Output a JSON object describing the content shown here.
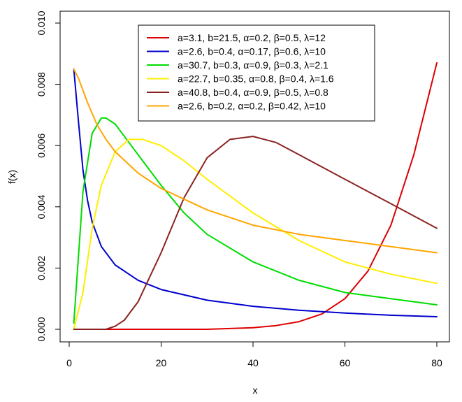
{
  "chart_data": {
    "type": "line",
    "xlabel": "x",
    "ylabel": "f(x)",
    "xlim": [
      0,
      80
    ],
    "ylim": [
      0,
      0.01
    ],
    "x_ticks": [
      "0",
      "20",
      "40",
      "60",
      "80"
    ],
    "y_ticks": [
      "0.000",
      "0.002",
      "0.004",
      "0.006",
      "0.008",
      "0.010"
    ],
    "x_tick_values": [
      0,
      20,
      40,
      60,
      80
    ],
    "y_tick_values": [
      0,
      0.002,
      0.004,
      0.006,
      0.008,
      0.01
    ],
    "grid": false,
    "legend_position": "top-center",
    "series": [
      {
        "name": "a=3.1, b=21.5, α=0.2, β=0.5, λ=12",
        "color": "#dd0000",
        "x": [
          1,
          10,
          20,
          30,
          40,
          45,
          50,
          55,
          60,
          65,
          70,
          75,
          80
        ],
        "y": [
          0.0,
          0.0,
          0.0,
          0.0,
          5e-05,
          0.00012,
          0.00025,
          0.0005,
          0.001,
          0.0019,
          0.0034,
          0.0057,
          0.0087
        ]
      },
      {
        "name": "a=2.6, b=0.4, α=0.17, β=0.6, λ=10",
        "color": "#0000cc",
        "x": [
          1,
          2,
          3,
          4,
          5,
          7,
          10,
          15,
          20,
          30,
          40,
          50,
          60,
          70,
          80
        ],
        "y": [
          0.0085,
          0.0068,
          0.0052,
          0.0042,
          0.0035,
          0.0027,
          0.0021,
          0.0016,
          0.0013,
          0.00095,
          0.00075,
          0.00062,
          0.00053,
          0.00046,
          0.00041
        ]
      },
      {
        "name": "a=30.7, b=0.3, α=0.9, β=0.3, λ=2.1",
        "color": "#00dd00",
        "x": [
          1,
          3,
          5,
          7,
          8,
          10,
          13,
          16,
          20,
          25,
          30,
          40,
          50,
          60,
          70,
          80
        ],
        "y": [
          0.0002,
          0.0045,
          0.0064,
          0.0069,
          0.0069,
          0.0067,
          0.0061,
          0.0055,
          0.0047,
          0.0038,
          0.0031,
          0.0022,
          0.0016,
          0.0012,
          0.001,
          0.0008
        ]
      },
      {
        "name": "a=22.7, b=0.35, α=0.8, β=0.4, λ=1.6",
        "color": "#ffee00",
        "x": [
          1,
          3,
          5,
          7,
          10,
          13,
          16,
          20,
          25,
          30,
          40,
          50,
          60,
          70,
          80
        ],
        "y": [
          0.0,
          0.0012,
          0.0033,
          0.0047,
          0.0058,
          0.0062,
          0.0062,
          0.006,
          0.0055,
          0.0049,
          0.0038,
          0.0029,
          0.0022,
          0.0018,
          0.0015
        ]
      },
      {
        "name": "a=40.8, b=0.4, α=0.9, β=0.5, λ=0.8",
        "color": "#8b2222",
        "x": [
          1,
          8,
          10,
          12,
          15,
          20,
          25,
          30,
          35,
          40,
          45,
          50,
          60,
          70,
          80
        ],
        "y": [
          0.0,
          0.0,
          0.0001,
          0.0003,
          0.0009,
          0.0025,
          0.0043,
          0.0056,
          0.0062,
          0.0063,
          0.0061,
          0.0057,
          0.0049,
          0.0041,
          0.0033
        ]
      },
      {
        "name": "a=2.6, b=0.2, α=0.2, β=0.42, λ=10",
        "color": "#ffa500",
        "x": [
          1,
          2,
          4,
          6,
          8,
          10,
          15,
          20,
          30,
          40,
          50,
          60,
          70,
          80
        ],
        "y": [
          0.0085,
          0.0082,
          0.0074,
          0.0067,
          0.0062,
          0.0058,
          0.0051,
          0.0046,
          0.0039,
          0.0034,
          0.0031,
          0.0029,
          0.0027,
          0.0025
        ]
      }
    ]
  }
}
